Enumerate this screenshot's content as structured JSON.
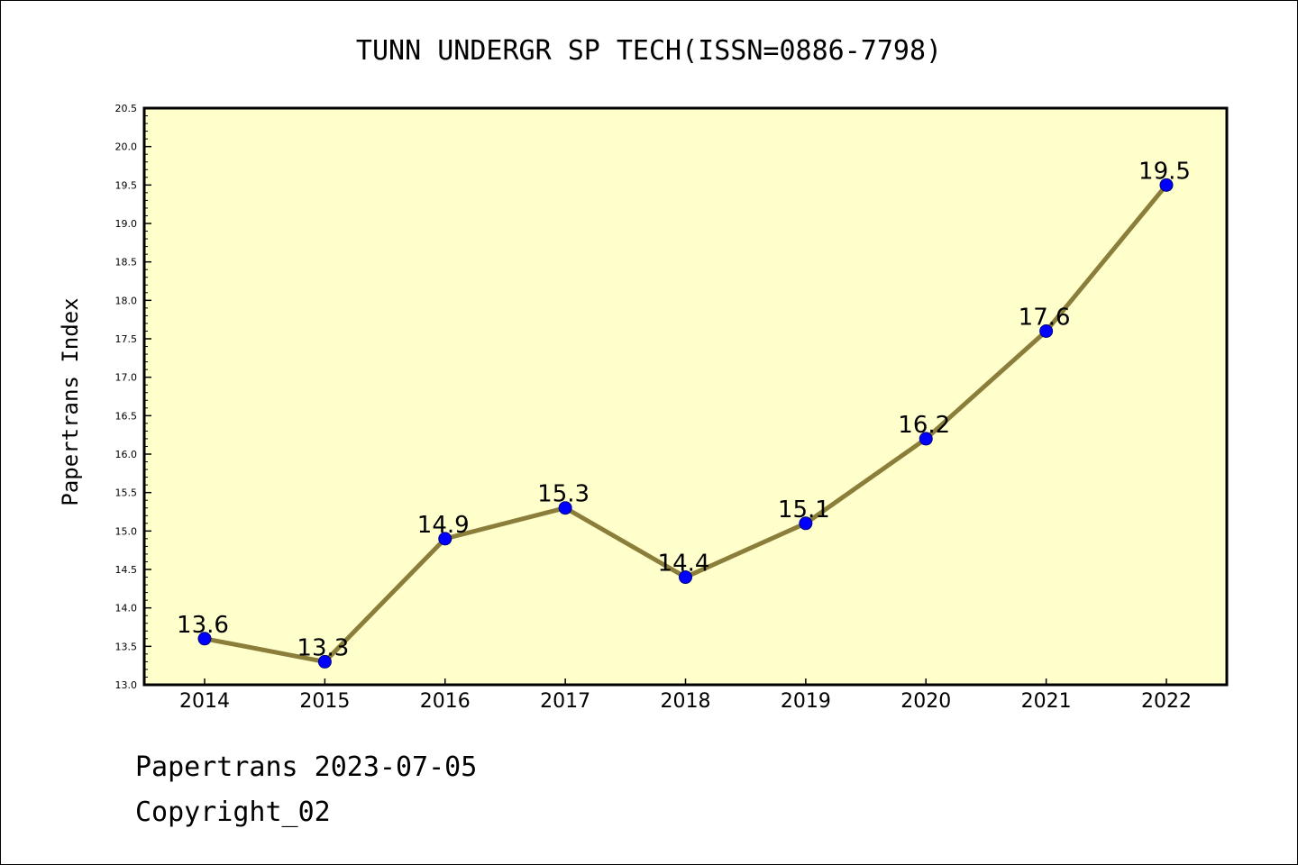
{
  "chart_data": {
    "type": "line",
    "title": "TUNN UNDERGR SP TECH(ISSN=0886-7798)",
    "xlabel": "",
    "ylabel": "Papertrans Index",
    "categories": [
      "2014",
      "2015",
      "2016",
      "2017",
      "2018",
      "2019",
      "2020",
      "2021",
      "2022"
    ],
    "series": [
      {
        "values": [
          13.6,
          13.3,
          14.9,
          15.3,
          14.4,
          15.1,
          16.2,
          17.6,
          19.5
        ],
        "labels": [
          "13.6",
          "13.3",
          "14.9",
          "15.3",
          "14.4",
          "15.1",
          "16.2",
          "17.6",
          "19.5"
        ]
      }
    ],
    "ylim": [
      13.0,
      20.5
    ],
    "yticks": [
      "13.0",
      "13.5",
      "14.0",
      "14.5",
      "15.0",
      "15.5",
      "16.0",
      "16.5",
      "17.0",
      "17.5",
      "18.0",
      "18.5",
      "19.0",
      "19.5",
      "20.0",
      "20.5"
    ],
    "grid": false,
    "colors": {
      "plot_background": "#ffffcc",
      "line": "#8b7d3a",
      "marker": "#0000ff"
    }
  },
  "footer": {
    "date_text": "Papertrans 2023-07-05",
    "copyright_text": "Copyright_02"
  }
}
